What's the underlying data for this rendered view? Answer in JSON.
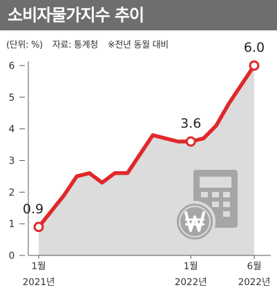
{
  "title": "소비자물가지수 추이",
  "unit_note": "(단위: %)",
  "source_note": "자료: 통계청",
  "basis_note": "※전년 동월 대비",
  "colors": {
    "title_bar": "#6e6e6e",
    "line": "#e0282b",
    "area": "#dcdcdc",
    "icon": "#a6a6a6"
  },
  "icons": [
    "calculator-icon",
    "won-coin-icon"
  ],
  "chart_data": {
    "type": "area",
    "title": "소비자물가지수 추이",
    "ylim": [
      0,
      6
    ],
    "y_ticks": [
      "0",
      "1",
      "2",
      "3",
      "4",
      "5",
      "6"
    ],
    "x_labels": [
      {
        "index": 0,
        "month": "1월",
        "year": "2021년"
      },
      {
        "index": 12,
        "month": "1월",
        "year": "2022년"
      },
      {
        "index": 17,
        "month": "6월",
        "year": "2022년"
      }
    ],
    "x": [
      "2021-01",
      "2021-02",
      "2021-03",
      "2021-04",
      "2021-05",
      "2021-06",
      "2021-07",
      "2021-08",
      "2021-09",
      "2021-10",
      "2021-11",
      "2021-12",
      "2022-01",
      "2022-02",
      "2022-03",
      "2022-04",
      "2022-05",
      "2022-06"
    ],
    "values": [
      0.9,
      1.4,
      1.9,
      2.5,
      2.6,
      2.3,
      2.6,
      2.6,
      3.2,
      3.8,
      3.7,
      3.6,
      3.6,
      3.7,
      4.1,
      4.8,
      5.4,
      6.0
    ],
    "labels": [
      {
        "index": 0,
        "text": "0.9"
      },
      {
        "index": 12,
        "text": "3.6"
      },
      {
        "index": 17,
        "text": "6.0"
      }
    ],
    "grid": false
  }
}
